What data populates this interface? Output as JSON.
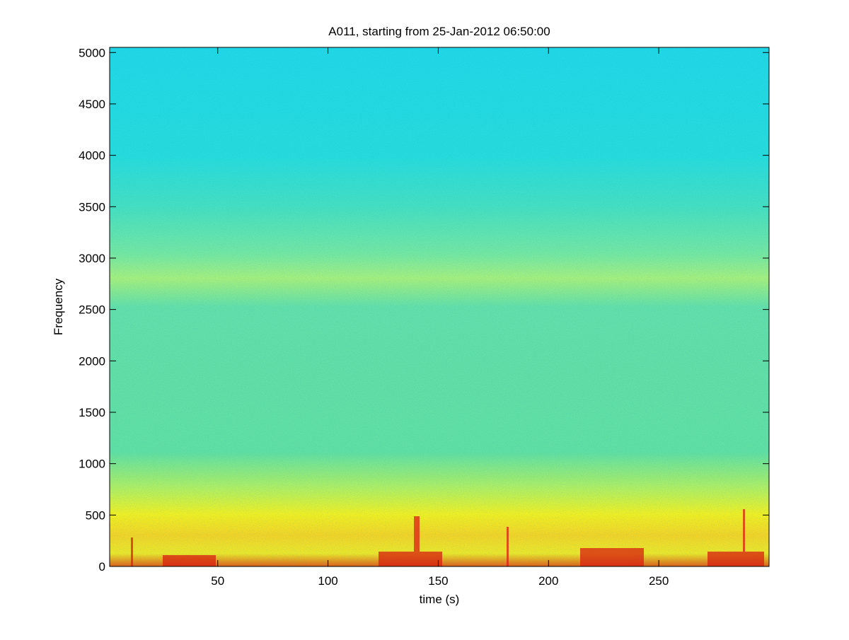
{
  "chart_data": {
    "type": "spectrogram",
    "title": "A011, starting from 25-Jan-2012 06:50:00",
    "xlabel": "time (s)",
    "ylabel": "Frequency",
    "xlim": [
      1,
      300
    ],
    "xticks": [
      50,
      100,
      150,
      200,
      250
    ],
    "ylim": [
      0,
      5050
    ],
    "yticks": [
      0,
      500,
      1000,
      1500,
      2000,
      2500,
      3000,
      3500,
      4000,
      4500,
      5000
    ]
  }
}
